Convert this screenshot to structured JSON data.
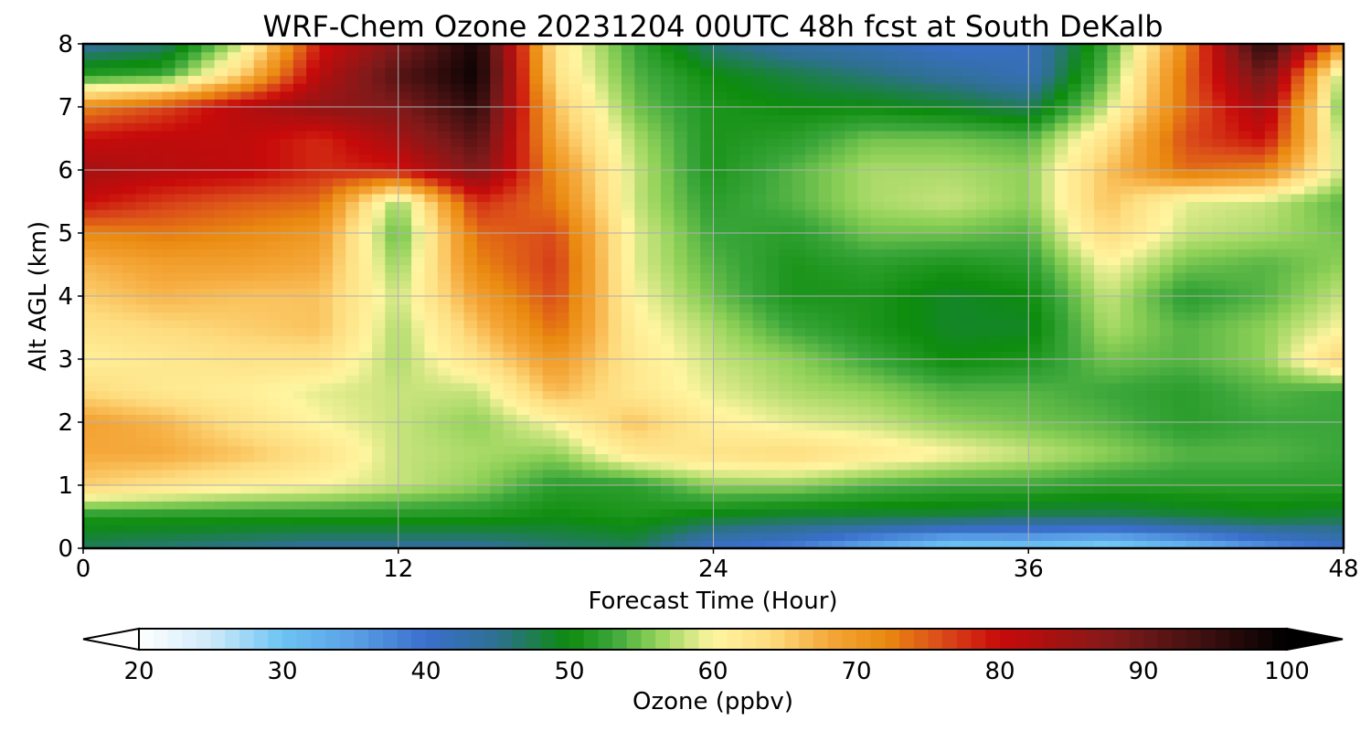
{
  "chart_data": {
    "type": "heatmap",
    "title": "WRF-Chem Ozone  20231204 00UTC 48h fcst at South DeKalb",
    "xlabel": "Forecast Time (Hour)",
    "ylabel": "Alt AGL (km)",
    "xlim": [
      0,
      48
    ],
    "ylim": [
      0,
      8
    ],
    "xticks": [
      "0",
      "12",
      "24",
      "36",
      "48"
    ],
    "yticks": [
      "0",
      "1",
      "2",
      "3",
      "4",
      "5",
      "6",
      "7",
      "8"
    ],
    "grid": true,
    "x": [
      0,
      3,
      6,
      9,
      12,
      15,
      18,
      21,
      24,
      27,
      30,
      33,
      36,
      39,
      42,
      45,
      48
    ],
    "y": [
      0,
      0.5,
      1,
      1.5,
      2,
      2.5,
      3,
      3.5,
      4,
      4.5,
      5,
      5.5,
      6,
      6.5,
      7,
      7.5,
      8
    ],
    "z": [
      [
        47,
        46,
        45,
        44,
        44,
        44,
        46,
        47,
        40,
        38,
        33,
        28,
        29,
        27,
        31,
        36,
        40
      ],
      [
        51,
        51,
        51,
        51,
        51,
        51,
        50,
        51,
        49,
        48,
        48,
        48,
        47,
        47,
        48,
        49,
        48
      ],
      [
        65,
        63,
        61,
        60,
        58,
        56,
        52,
        52,
        56,
        56,
        54,
        53,
        53,
        52,
        52,
        52,
        52
      ],
      [
        68,
        68,
        66,
        63,
        58,
        57,
        56,
        62,
        63,
        64,
        62,
        60,
        58,
        56,
        54,
        54,
        53
      ],
      [
        69,
        67,
        63,
        60,
        58,
        56,
        60,
        66,
        61,
        59,
        58,
        56,
        55,
        54,
        52,
        53,
        53
      ],
      [
        64,
        62,
        61,
        59,
        58,
        58,
        67,
        62,
        59,
        57,
        56,
        54,
        54,
        53,
        52,
        54,
        53
      ],
      [
        61,
        62,
        63,
        63,
        57,
        63,
        70,
        62,
        58,
        56,
        53,
        50,
        51,
        55,
        54,
        56,
        65
      ],
      [
        63,
        64,
        65,
        66,
        57,
        66,
        74,
        61,
        57,
        53,
        51,
        49,
        49,
        57,
        54,
        56,
        60
      ],
      [
        65,
        67,
        66,
        66,
        58,
        69,
        76,
        60,
        55,
        51,
        51,
        49,
        50,
        58,
        52,
        54,
        58
      ],
      [
        67,
        69,
        69,
        68,
        56,
        72,
        77,
        59,
        54,
        51,
        52,
        51,
        52,
        60,
        55,
        54,
        56
      ],
      [
        72,
        73,
        72,
        70,
        54,
        74,
        76,
        59,
        53,
        52,
        55,
        55,
        54,
        64,
        58,
        57,
        55
      ],
      [
        80,
        77,
        75,
        74,
        56,
        78,
        73,
        58,
        52,
        54,
        57,
        58,
        56,
        66,
        59,
        58,
        54
      ],
      [
        84,
        82,
        81,
        78,
        79,
        88,
        71,
        58,
        51,
        54,
        57,
        57,
        56,
        66,
        74,
        72,
        58
      ],
      [
        80,
        81,
        81,
        78,
        84,
        92,
        68,
        57,
        51,
        52,
        55,
        55,
        54,
        63,
        76,
        80,
        57
      ],
      [
        72,
        76,
        82,
        86,
        88,
        96,
        66,
        55,
        51,
        50,
        50,
        49,
        47,
        58,
        74,
        84,
        54
      ],
      [
        52,
        53,
        65,
        82,
        92,
        99,
        63,
        54,
        50,
        48,
        46,
        44,
        42,
        55,
        74,
        90,
        56
      ],
      [
        44,
        46,
        58,
        79,
        88,
        98,
        62,
        53,
        46,
        43,
        42,
        40,
        41,
        53,
        72,
        97,
        70
      ]
    ],
    "colorbar": {
      "label": "Ozone  (ppbv)",
      "min": 20,
      "max": 100,
      "extend": "both",
      "ticks": [
        "20",
        "30",
        "40",
        "50",
        "60",
        "70",
        "80",
        "90",
        "100"
      ],
      "colormap": [
        [
          20,
          "#ffffff"
        ],
        [
          25,
          "#cfeaf9"
        ],
        [
          30,
          "#6cc4f3"
        ],
        [
          35,
          "#5aa0e6"
        ],
        [
          40,
          "#3a6fcc"
        ],
        [
          45,
          "#2e7090"
        ],
        [
          50,
          "#0d8c0d"
        ],
        [
          53,
          "#3aa63a"
        ],
        [
          56,
          "#8fd158"
        ],
        [
          60,
          "#fff5a0"
        ],
        [
          64,
          "#fedc7f"
        ],
        [
          68,
          "#f5a83a"
        ],
        [
          72,
          "#ea8a10"
        ],
        [
          76,
          "#da4a1a"
        ],
        [
          80,
          "#c80a0a"
        ],
        [
          88,
          "#801a1a"
        ],
        [
          94,
          "#401010"
        ],
        [
          100,
          "#000000"
        ]
      ]
    }
  }
}
